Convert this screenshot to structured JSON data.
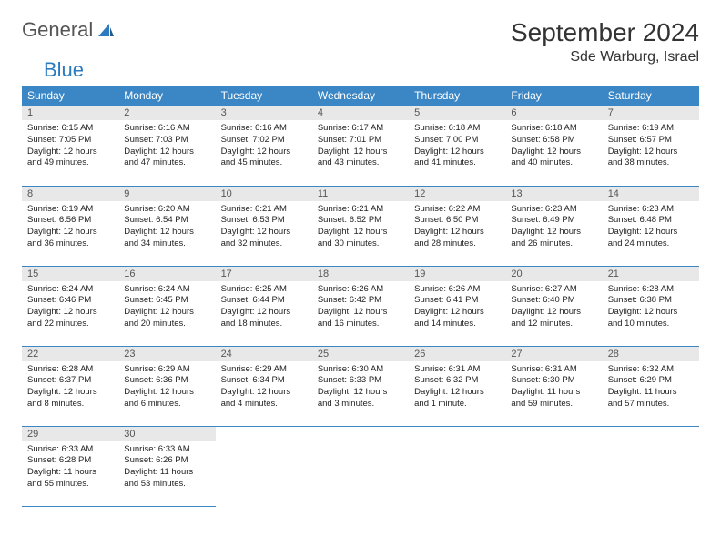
{
  "logo": {
    "word1": "General",
    "word2": "Blue"
  },
  "header": {
    "title": "September 2024",
    "location": "Sde Warburg, Israel"
  },
  "calendar": {
    "type": "table",
    "columns": [
      "Sunday",
      "Monday",
      "Tuesday",
      "Wednesday",
      "Thursday",
      "Friday",
      "Saturday"
    ],
    "header_bg": "#3b86c4",
    "header_fg": "#ffffff",
    "daynum_bg": "#e8e8e8",
    "border_color": "#3b86c4",
    "background_color": "#ffffff",
    "body_fontsize": 9.5,
    "head_fontsize": 12,
    "days": [
      {
        "n": "1",
        "sr": "6:15 AM",
        "ss": "7:05 PM",
        "dl": "12 hours and 49 minutes."
      },
      {
        "n": "2",
        "sr": "6:16 AM",
        "ss": "7:03 PM",
        "dl": "12 hours and 47 minutes."
      },
      {
        "n": "3",
        "sr": "6:16 AM",
        "ss": "7:02 PM",
        "dl": "12 hours and 45 minutes."
      },
      {
        "n": "4",
        "sr": "6:17 AM",
        "ss": "7:01 PM",
        "dl": "12 hours and 43 minutes."
      },
      {
        "n": "5",
        "sr": "6:18 AM",
        "ss": "7:00 PM",
        "dl": "12 hours and 41 minutes."
      },
      {
        "n": "6",
        "sr": "6:18 AM",
        "ss": "6:58 PM",
        "dl": "12 hours and 40 minutes."
      },
      {
        "n": "7",
        "sr": "6:19 AM",
        "ss": "6:57 PM",
        "dl": "12 hours and 38 minutes."
      },
      {
        "n": "8",
        "sr": "6:19 AM",
        "ss": "6:56 PM",
        "dl": "12 hours and 36 minutes."
      },
      {
        "n": "9",
        "sr": "6:20 AM",
        "ss": "6:54 PM",
        "dl": "12 hours and 34 minutes."
      },
      {
        "n": "10",
        "sr": "6:21 AM",
        "ss": "6:53 PM",
        "dl": "12 hours and 32 minutes."
      },
      {
        "n": "11",
        "sr": "6:21 AM",
        "ss": "6:52 PM",
        "dl": "12 hours and 30 minutes."
      },
      {
        "n": "12",
        "sr": "6:22 AM",
        "ss": "6:50 PM",
        "dl": "12 hours and 28 minutes."
      },
      {
        "n": "13",
        "sr": "6:23 AM",
        "ss": "6:49 PM",
        "dl": "12 hours and 26 minutes."
      },
      {
        "n": "14",
        "sr": "6:23 AM",
        "ss": "6:48 PM",
        "dl": "12 hours and 24 minutes."
      },
      {
        "n": "15",
        "sr": "6:24 AM",
        "ss": "6:46 PM",
        "dl": "12 hours and 22 minutes."
      },
      {
        "n": "16",
        "sr": "6:24 AM",
        "ss": "6:45 PM",
        "dl": "12 hours and 20 minutes."
      },
      {
        "n": "17",
        "sr": "6:25 AM",
        "ss": "6:44 PM",
        "dl": "12 hours and 18 minutes."
      },
      {
        "n": "18",
        "sr": "6:26 AM",
        "ss": "6:42 PM",
        "dl": "12 hours and 16 minutes."
      },
      {
        "n": "19",
        "sr": "6:26 AM",
        "ss": "6:41 PM",
        "dl": "12 hours and 14 minutes."
      },
      {
        "n": "20",
        "sr": "6:27 AM",
        "ss": "6:40 PM",
        "dl": "12 hours and 12 minutes."
      },
      {
        "n": "21",
        "sr": "6:28 AM",
        "ss": "6:38 PM",
        "dl": "12 hours and 10 minutes."
      },
      {
        "n": "22",
        "sr": "6:28 AM",
        "ss": "6:37 PM",
        "dl": "12 hours and 8 minutes."
      },
      {
        "n": "23",
        "sr": "6:29 AM",
        "ss": "6:36 PM",
        "dl": "12 hours and 6 minutes."
      },
      {
        "n": "24",
        "sr": "6:29 AM",
        "ss": "6:34 PM",
        "dl": "12 hours and 4 minutes."
      },
      {
        "n": "25",
        "sr": "6:30 AM",
        "ss": "6:33 PM",
        "dl": "12 hours and 3 minutes."
      },
      {
        "n": "26",
        "sr": "6:31 AM",
        "ss": "6:32 PM",
        "dl": "12 hours and 1 minute."
      },
      {
        "n": "27",
        "sr": "6:31 AM",
        "ss": "6:30 PM",
        "dl": "11 hours and 59 minutes."
      },
      {
        "n": "28",
        "sr": "6:32 AM",
        "ss": "6:29 PM",
        "dl": "11 hours and 57 minutes."
      },
      {
        "n": "29",
        "sr": "6:33 AM",
        "ss": "6:28 PM",
        "dl": "11 hours and 55 minutes."
      },
      {
        "n": "30",
        "sr": "6:33 AM",
        "ss": "6:26 PM",
        "dl": "11 hours and 53 minutes."
      }
    ],
    "labels": {
      "sunrise": "Sunrise: ",
      "sunset": "Sunset: ",
      "daylight": "Daylight: "
    }
  }
}
